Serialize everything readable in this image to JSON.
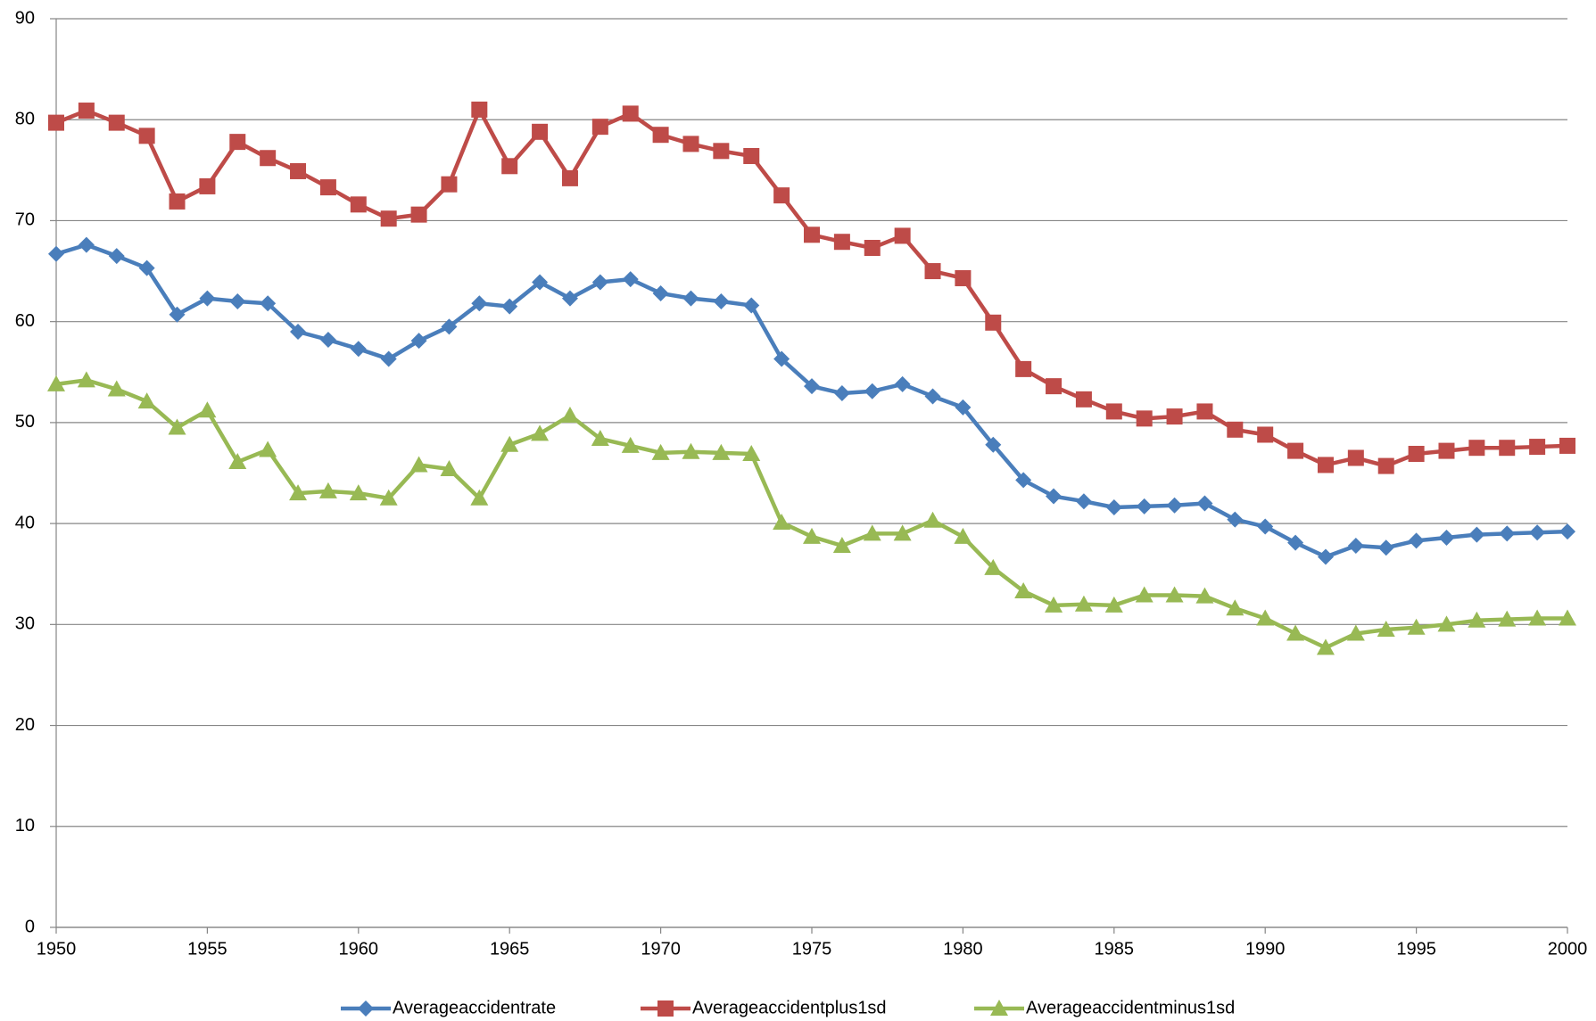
{
  "chart_data": {
    "type": "line",
    "x": [
      1950,
      1951,
      1952,
      1953,
      1954,
      1955,
      1956,
      1957,
      1958,
      1959,
      1960,
      1961,
      1962,
      1963,
      1964,
      1965,
      1966,
      1967,
      1968,
      1969,
      1970,
      1971,
      1972,
      1973,
      1974,
      1975,
      1976,
      1977,
      1978,
      1979,
      1980,
      1981,
      1982,
      1983,
      1984,
      1985,
      1986,
      1987,
      1988,
      1989,
      1990,
      1991,
      1992,
      1993,
      1994,
      1995,
      1996,
      1997,
      1998,
      1999,
      2000
    ],
    "series": [
      {
        "name": "Averageaccidentrate",
        "color": "#4a7ebb",
        "marker": "diamond",
        "values": [
          66.7,
          67.6,
          66.5,
          65.3,
          60.7,
          62.3,
          62.0,
          61.8,
          59.0,
          58.2,
          57.3,
          56.3,
          58.1,
          59.5,
          61.8,
          61.5,
          63.9,
          62.3,
          63.9,
          64.2,
          62.8,
          62.3,
          62.0,
          61.6,
          56.3,
          53.6,
          52.9,
          53.1,
          53.8,
          52.6,
          51.5,
          47.8,
          44.3,
          42.7,
          42.2,
          41.6,
          41.7,
          41.8,
          42.0,
          40.4,
          39.7,
          38.1,
          36.7,
          37.8,
          37.6,
          38.3,
          38.6,
          38.9,
          39.0,
          39.1,
          39.2
        ]
      },
      {
        "name": "Averageaccidentplus1sd",
        "color": "#be4b48",
        "marker": "square",
        "values": [
          79.7,
          80.9,
          79.7,
          78.4,
          71.9,
          73.4,
          77.8,
          76.2,
          74.9,
          73.3,
          71.6,
          70.2,
          70.6,
          73.6,
          81.0,
          75.4,
          78.8,
          74.2,
          79.3,
          80.6,
          78.5,
          77.6,
          76.9,
          76.4,
          72.5,
          68.6,
          67.9,
          67.3,
          68.5,
          65.0,
          64.3,
          59.9,
          55.3,
          53.6,
          52.3,
          51.1,
          50.4,
          50.6,
          51.1,
          49.3,
          48.8,
          47.2,
          45.8,
          46.5,
          45.7,
          46.9,
          47.2,
          47.5,
          47.5,
          47.6,
          47.7
        ]
      },
      {
        "name": "Averageaccidentminus1sd",
        "color": "#98b954",
        "marker": "triangle",
        "values": [
          53.8,
          54.2,
          53.3,
          52.1,
          49.5,
          51.2,
          46.1,
          47.3,
          43.0,
          43.2,
          43.0,
          42.5,
          45.8,
          45.4,
          42.5,
          47.8,
          48.9,
          50.7,
          48.4,
          47.7,
          47.0,
          47.1,
          47.0,
          46.9,
          40.1,
          38.7,
          37.8,
          39.0,
          39.0,
          40.3,
          38.7,
          35.6,
          33.3,
          31.9,
          32.0,
          31.9,
          32.9,
          32.9,
          32.8,
          31.6,
          30.6,
          29.1,
          27.7,
          29.1,
          29.5,
          29.7,
          30.0,
          30.4,
          30.5,
          30.6,
          30.6
        ]
      }
    ],
    "xlim": [
      1950,
      2000
    ],
    "xticks": [
      1950,
      1955,
      1960,
      1965,
      1970,
      1975,
      1980,
      1985,
      1990,
      1995,
      2000
    ],
    "ylim": [
      0,
      90
    ],
    "yticks": [
      0,
      10,
      20,
      30,
      40,
      50,
      60,
      70,
      80,
      90
    ],
    "grid": true,
    "legend": "bottom"
  }
}
